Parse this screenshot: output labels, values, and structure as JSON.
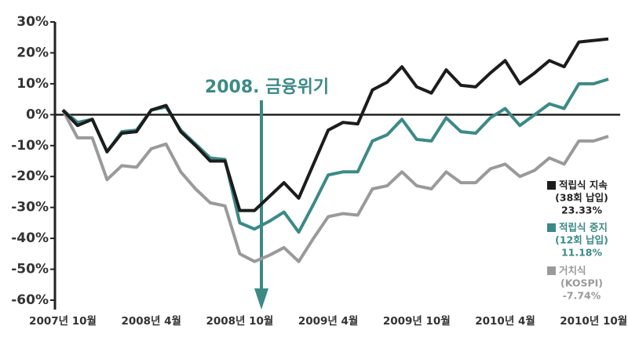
{
  "chart_data": {
    "type": "line",
    "annotation": "2008. 금융위기",
    "categories": [
      "2007년 10월",
      null,
      null,
      null,
      null,
      null,
      "2008년 4월",
      null,
      null,
      null,
      null,
      null,
      "2008년 10월",
      null,
      null,
      null,
      null,
      null,
      "2009년 4월",
      null,
      null,
      null,
      null,
      null,
      "2009년 10월",
      null,
      null,
      null,
      null,
      null,
      "2010년 4월",
      null,
      null,
      null,
      null,
      null,
      "2010년 10월",
      null
    ],
    "ylim": [
      -60,
      30
    ],
    "yticks": [
      {
        "value": 30,
        "label": "30%"
      },
      {
        "value": 20,
        "label": "20%"
      },
      {
        "value": 10,
        "label": "10%"
      },
      {
        "value": 0,
        "label": "0%"
      },
      {
        "value": -10,
        "label": "-10%"
      },
      {
        "value": -20,
        "label": "-20%"
      },
      {
        "value": -30,
        "label": "-30%"
      },
      {
        "value": -40,
        "label": "-40%"
      },
      {
        "value": -50,
        "label": "-50%"
      },
      {
        "value": -60,
        "label": "-60%"
      }
    ],
    "series": [
      {
        "name": "적립식 지속",
        "detail": "(38회 납입)",
        "summary": "23.33%",
        "color": "#1c1c1c",
        "values": [
          1.5,
          -3.5,
          -1.5,
          -12,
          -6,
          -5.5,
          1.5,
          3,
          -5.5,
          -10,
          -15,
          -15,
          -31,
          -31,
          -26.5,
          -22,
          -27,
          -16,
          -5,
          -2.5,
          -3,
          8,
          10.5,
          15.5,
          9,
          7,
          14.5,
          9.5,
          9,
          13.5,
          17.5,
          10,
          13.5,
          17.5,
          15.5,
          23.5,
          24,
          24.5
        ]
      },
      {
        "name": "적립식 중지",
        "detail": "(12회 납입)",
        "summary": "11.18%",
        "color": "#3b8a86",
        "values": [
          1.5,
          -2.5,
          -1.5,
          -12,
          -5.5,
          -5,
          1.5,
          2.5,
          -5,
          -9.5,
          -14,
          -14.5,
          -35,
          -37,
          -34.5,
          -31.5,
          -38,
          -29,
          -19.5,
          -18.5,
          -18.5,
          -8.5,
          -6.5,
          -1.5,
          -8,
          -8.5,
          -1,
          -5.5,
          -6,
          -1,
          2,
          -3.5,
          0,
          3.5,
          2,
          10,
          10,
          11.5
        ]
      },
      {
        "name": "거치식",
        "detail": "(KOSPI)",
        "summary": "-7.74%",
        "color": "#9a9a9a",
        "values": [
          1.5,
          -7.5,
          -7.5,
          -21,
          -16.5,
          -17,
          -11,
          -9.5,
          -18.5,
          -24,
          -28.5,
          -29.5,
          -45,
          -47.5,
          -45.5,
          -43,
          -47.5,
          -40,
          -33,
          -32,
          -32.5,
          -24,
          -23,
          -18.5,
          -23,
          -24,
          -18.5,
          -22,
          -22,
          -17.5,
          -16,
          -20,
          -18,
          -14,
          -16,
          -8.5,
          -8.5,
          -7
        ]
      }
    ]
  }
}
